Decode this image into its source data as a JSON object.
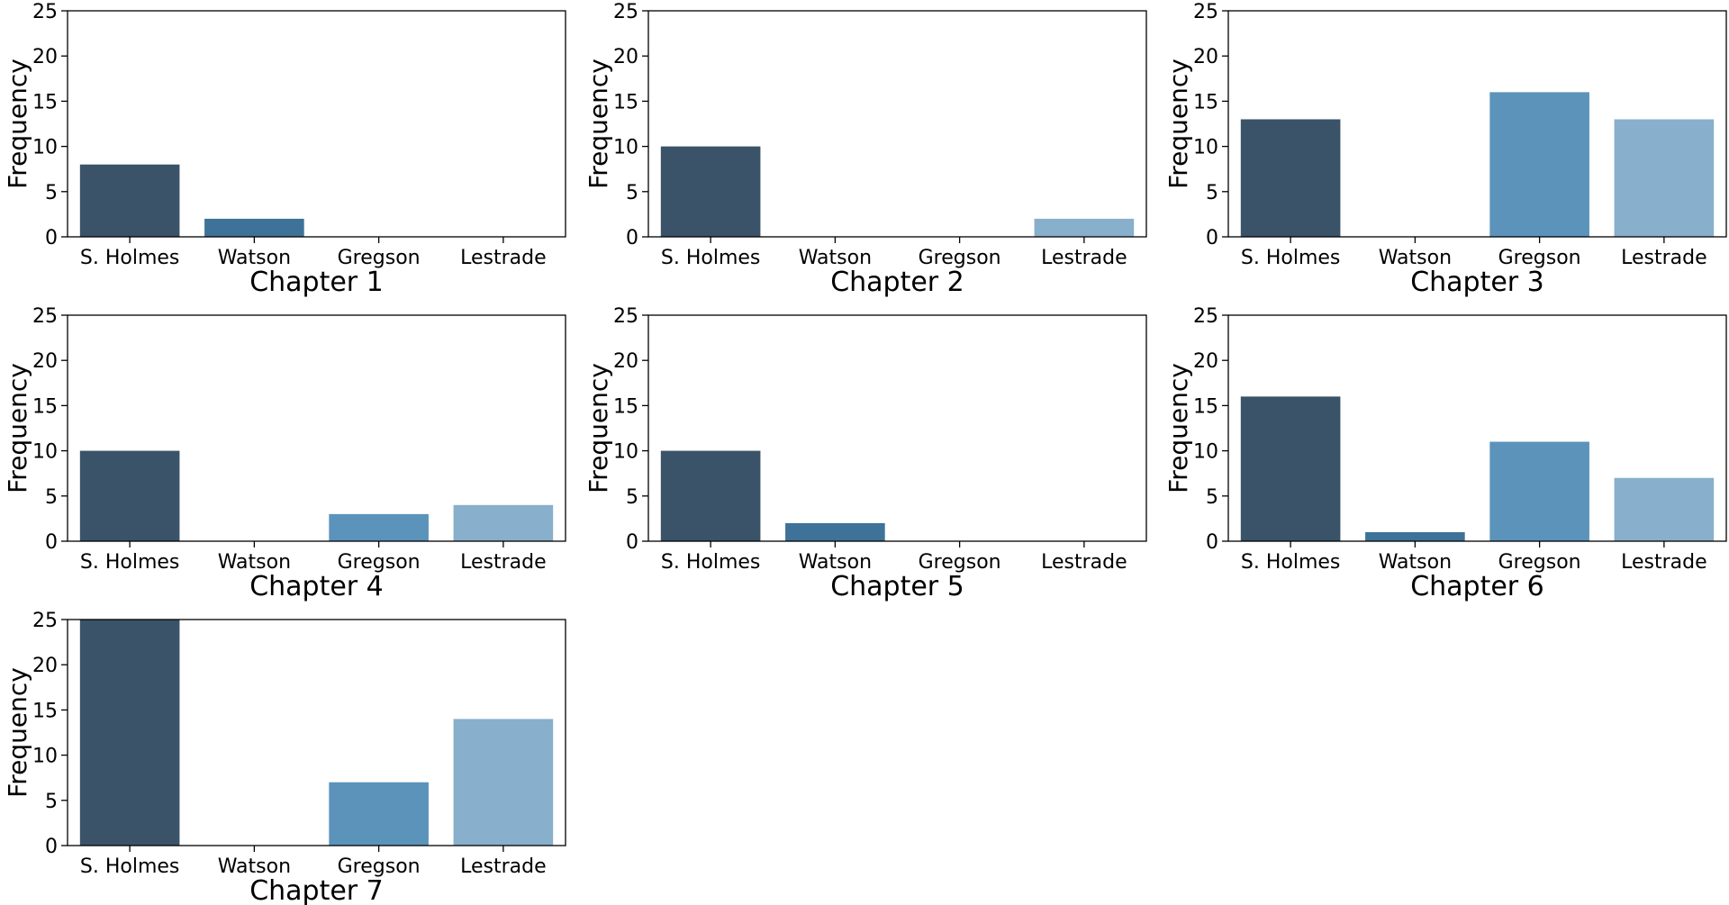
{
  "chart_data": [
    {
      "type": "bar",
      "xlabel": "Chapter 1",
      "ylabel": "Frequency",
      "categories": [
        "S. Holmes",
        "Watson",
        "Gregson",
        "Lestrade"
      ],
      "values": [
        8,
        2,
        0,
        0
      ],
      "ylim": [
        0,
        25
      ],
      "yticks": [
        0,
        5,
        10,
        15,
        20,
        25
      ]
    },
    {
      "type": "bar",
      "xlabel": "Chapter 2",
      "ylabel": "Frequency",
      "categories": [
        "S. Holmes",
        "Watson",
        "Gregson",
        "Lestrade"
      ],
      "values": [
        10,
        0,
        0,
        2
      ],
      "ylim": [
        0,
        25
      ],
      "yticks": [
        0,
        5,
        10,
        15,
        20,
        25
      ]
    },
    {
      "type": "bar",
      "xlabel": "Chapter 3",
      "ylabel": "Frequency",
      "categories": [
        "S. Holmes",
        "Watson",
        "Gregson",
        "Lestrade"
      ],
      "values": [
        13,
        0,
        16,
        13
      ],
      "ylim": [
        0,
        25
      ],
      "yticks": [
        0,
        5,
        10,
        15,
        20,
        25
      ]
    },
    {
      "type": "bar",
      "xlabel": "Chapter 4",
      "ylabel": "Frequency",
      "categories": [
        "S. Holmes",
        "Watson",
        "Gregson",
        "Lestrade"
      ],
      "values": [
        10,
        0,
        3,
        4
      ],
      "ylim": [
        0,
        25
      ],
      "yticks": [
        0,
        5,
        10,
        15,
        20,
        25
      ]
    },
    {
      "type": "bar",
      "xlabel": "Chapter 5",
      "ylabel": "Frequency",
      "categories": [
        "S. Holmes",
        "Watson",
        "Gregson",
        "Lestrade"
      ],
      "values": [
        10,
        2,
        0,
        0
      ],
      "ylim": [
        0,
        25
      ],
      "yticks": [
        0,
        5,
        10,
        15,
        20,
        25
      ]
    },
    {
      "type": "bar",
      "xlabel": "Chapter 6",
      "ylabel": "Frequency",
      "categories": [
        "S. Holmes",
        "Watson",
        "Gregson",
        "Lestrade"
      ],
      "values": [
        16,
        1,
        11,
        7
      ],
      "ylim": [
        0,
        25
      ],
      "yticks": [
        0,
        5,
        10,
        15,
        20,
        25
      ]
    },
    {
      "type": "bar",
      "xlabel": "Chapter 7",
      "ylabel": "Frequency",
      "categories": [
        "S. Holmes",
        "Watson",
        "Gregson",
        "Lestrade"
      ],
      "values": [
        25,
        0,
        7,
        14
      ],
      "ylim": [
        0,
        25
      ],
      "yticks": [
        0,
        5,
        10,
        15,
        20,
        25
      ]
    }
  ],
  "colors": {
    "category_colors": [
      "#3a5368",
      "#3e7298",
      "#5b93bb",
      "#88afcc"
    ],
    "axis": "#000000",
    "background": "#ffffff"
  }
}
